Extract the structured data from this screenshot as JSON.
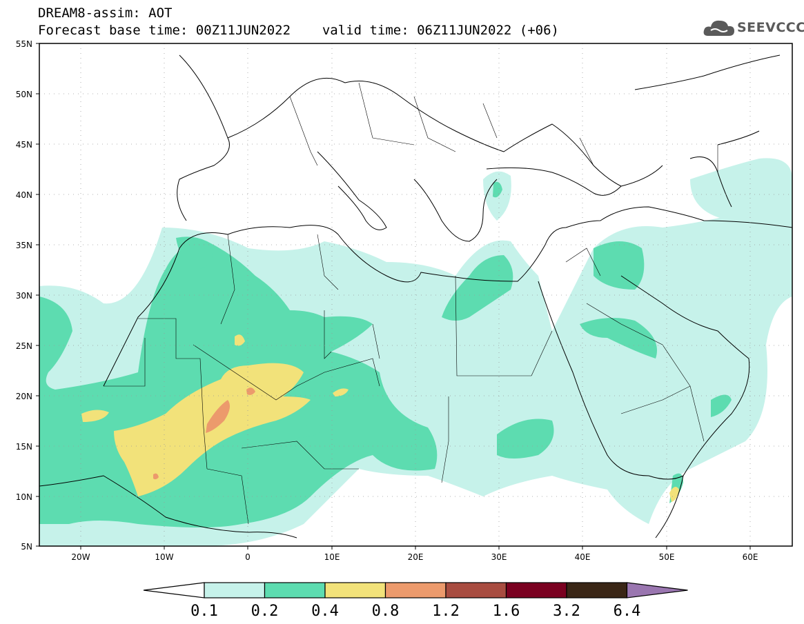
{
  "header": {
    "title": "DREAM8-assim: AOT",
    "base_time_line": "Forecast base time: 00Z11JUN2022",
    "valid_time_line": "valid time: 06Z11JUN2022 (+06)"
  },
  "logo": {
    "text": "SEEVCCC",
    "icon": "cloud-icon"
  },
  "map": {
    "lon_range": [
      -25,
      65
    ],
    "lat_range": [
      5,
      55
    ],
    "lat_labels": [
      "55N",
      "50N",
      "45N",
      "40N",
      "35N",
      "30N",
      "25N",
      "20N",
      "15N",
      "10N",
      "5N"
    ],
    "lon_labels": [
      "20W",
      "10W",
      "0",
      "10E",
      "20E",
      "30E",
      "40E",
      "50E",
      "60E"
    ],
    "grid": "dotted"
  },
  "colorbar": {
    "labels": [
      "0.1",
      "0.2",
      "0.4",
      "0.8",
      "1.2",
      "1.6",
      "3.2",
      "6.4"
    ],
    "colors": [
      "#ffffff",
      "#c6f2ea",
      "#5ddcb0",
      "#f2e27a",
      "#ec9a6c",
      "#a84c40",
      "#7a0020",
      "#3a2616",
      "#9a76b0"
    ]
  }
}
